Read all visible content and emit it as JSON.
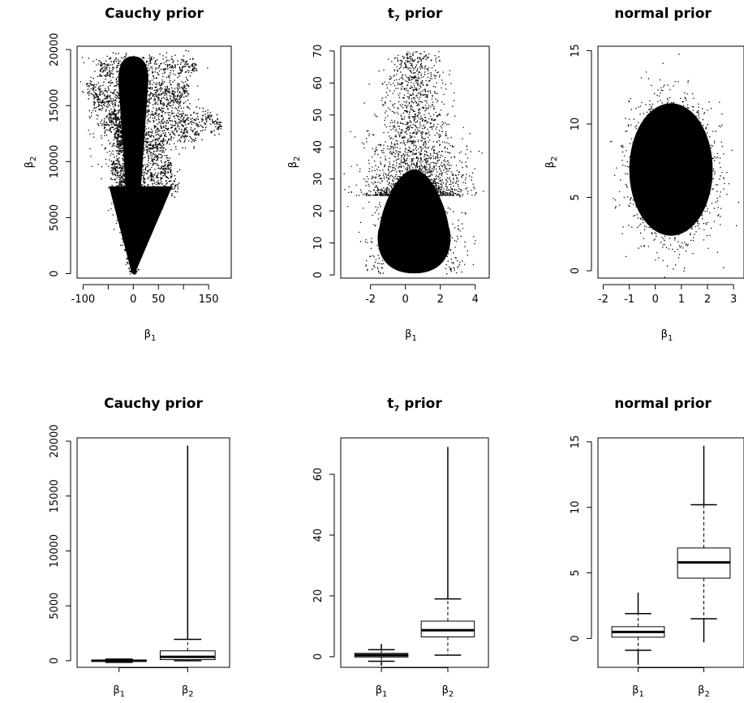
{
  "chart_data": [
    {
      "type": "scatter",
      "title": "Cauchy prior",
      "title_sub": "",
      "xlabel": "β",
      "xlabel_sub": "1",
      "ylabel": "β",
      "ylabel_sub": "2",
      "xlim": [
        -112,
        195
      ],
      "ylim": [
        -400,
        20300
      ],
      "xticks": [
        {
          "value": -100,
          "label": "-100"
        },
        {
          "value": -50,
          "label": ""
        },
        {
          "value": 0,
          "label": "0"
        },
        {
          "value": 50,
          "label": "50"
        },
        {
          "value": 100,
          "label": ""
        },
        {
          "value": 150,
          "label": "150"
        }
      ],
      "yticks": [
        {
          "value": 0,
          "label": "0"
        },
        {
          "value": 5000,
          "label": "5000"
        },
        {
          "value": 10000,
          "label": "10000"
        },
        {
          "value": 15000,
          "label": "15000"
        },
        {
          "value": 20000,
          "label": "20000"
        }
      ],
      "cloud": {
        "shape": "cone",
        "center_x": 0,
        "y_min": 0,
        "y_max": 19400,
        "base_halfwidth": 3,
        "top_halfwidth": 30,
        "fringe_levels_y": [
          6500,
          8000,
          9500,
          11500,
          12600,
          13400,
          14000,
          15500,
          16400,
          18400
        ],
        "fringe_right_x": [
          60,
          90,
          75,
          60,
          130,
          175,
          155,
          95,
          110,
          125
        ],
        "fringe_left_x": [
          -25,
          -30,
          -45,
          -35,
          -40,
          -60,
          -50,
          -80,
          -95,
          -70
        ]
      },
      "color": "#000000"
    },
    {
      "type": "scatter",
      "title": "t",
      "title_sub": "7",
      "title_suffix": " prior",
      "xlabel": "β",
      "xlabel_sub": "1",
      "ylabel": "β",
      "ylabel_sub": "2",
      "xlim": [
        -3.7,
        4.8
      ],
      "ylim": [
        -1,
        71.5
      ],
      "xticks": [
        {
          "value": -2,
          "label": "-2"
        },
        {
          "value": 0,
          "label": "0"
        },
        {
          "value": 2,
          "label": "2"
        },
        {
          "value": 4,
          "label": "4"
        }
      ],
      "yticks": [
        {
          "value": 0,
          "label": "0"
        },
        {
          "value": 10,
          "label": "10"
        },
        {
          "value": 20,
          "label": "20"
        },
        {
          "value": 30,
          "label": "30"
        },
        {
          "value": 40,
          "label": "40"
        },
        {
          "value": 50,
          "label": "50"
        },
        {
          "value": 60,
          "label": "60"
        },
        {
          "value": 70,
          "label": "70"
        }
      ],
      "cloud": {
        "shape": "egg",
        "center_x": 0.5,
        "center_y": 15,
        "sd_x": 1.1,
        "y_min": 0.5,
        "dense_top": 33,
        "sparse_top": 70
      },
      "color": "#000000"
    },
    {
      "type": "scatter",
      "title": "normal prior",
      "title_sub": "",
      "xlabel": "β",
      "xlabel_sub": "1",
      "ylabel": "β",
      "ylabel_sub": "2",
      "xlim": [
        -2.2,
        3.4
      ],
      "ylim": [
        -0.5,
        15.3
      ],
      "xticks": [
        {
          "value": -2,
          "label": "-2"
        },
        {
          "value": -1,
          "label": "-1"
        },
        {
          "value": 0,
          "label": "0"
        },
        {
          "value": 1,
          "label": "1"
        },
        {
          "value": 2,
          "label": "2"
        },
        {
          "value": 3,
          "label": "3"
        }
      ],
      "yticks": [
        {
          "value": 0,
          "label": "0"
        },
        {
          "value": 5,
          "label": "5"
        },
        {
          "value": 10,
          "label": "10"
        },
        {
          "value": 15,
          "label": "15"
        }
      ],
      "cloud": {
        "shape": "ellipse",
        "center_x": 0.6,
        "center_y": 6.9,
        "sd_x": 0.78,
        "sd_y": 2.2
      },
      "color": "#000000"
    },
    {
      "type": "box",
      "title": "Cauchy prior",
      "title_sub": "",
      "categories": [
        {
          "label": "β",
          "sub": "1"
        },
        {
          "label": "β",
          "sub": "2"
        }
      ],
      "ylim": [
        -600,
        20300
      ],
      "yticks": [
        {
          "value": 0,
          "label": "0"
        },
        {
          "value": 5000,
          "label": "5000"
        },
        {
          "value": 10000,
          "label": "10000"
        },
        {
          "value": 15000,
          "label": "15000"
        },
        {
          "value": 20000,
          "label": "20000"
        }
      ],
      "boxes": [
        {
          "min": -150,
          "q1": -40,
          "median": 0,
          "q3": 40,
          "max": 150,
          "flier_cap": null
        },
        {
          "min": 0,
          "q1": 100,
          "median": 350,
          "q3": 900,
          "max": 1950,
          "flier_cap": 1950,
          "flier_top": 19600
        }
      ]
    },
    {
      "type": "box",
      "title": "t",
      "title_sub": "7",
      "title_suffix": " prior",
      "categories": [
        {
          "label": "β",
          "sub": "1"
        },
        {
          "label": "β",
          "sub": "2"
        }
      ],
      "ylim": [
        -3.5,
        72
      ],
      "yticks": [
        {
          "value": 0,
          "label": "0"
        },
        {
          "value": 20,
          "label": "20"
        },
        {
          "value": 40,
          "label": "40"
        },
        {
          "value": 60,
          "label": "60"
        }
      ],
      "boxes": [
        {
          "min": -1.5,
          "q1": -0.1,
          "median": 0.5,
          "q3": 1.1,
          "max": 2.3,
          "flier_cap": 2.3,
          "flier_top": 4.2,
          "flier_bottom": -3
        },
        {
          "min": 0.5,
          "q1": 6.5,
          "median": 8.7,
          "q3": 11.7,
          "max": 19,
          "flier_cap": 19,
          "flier_top": 69
        }
      ]
    },
    {
      "type": "box",
      "title": "normal prior",
      "title_sub": "",
      "categories": [
        {
          "label": "β",
          "sub": "1"
        },
        {
          "label": "β",
          "sub": "2"
        }
      ],
      "ylim": [
        -2.2,
        15.3
      ],
      "yticks": [
        {
          "value": 0,
          "label": "0"
        },
        {
          "value": 5,
          "label": "5"
        },
        {
          "value": 10,
          "label": "10"
        },
        {
          "value": 15,
          "label": "15"
        }
      ],
      "boxes": [
        {
          "min": -0.9,
          "q1": 0.1,
          "median": 0.5,
          "q3": 0.9,
          "max": 1.9,
          "flier_cap": 1.9,
          "flier_top": 3.5,
          "flier_bottom": -2,
          "low_cap": -0.9
        },
        {
          "min": 1.5,
          "q1": 4.6,
          "median": 5.8,
          "q3": 6.9,
          "max": 10.2,
          "flier_cap": 10.2,
          "flier_top": 14.7,
          "flier_bottom": -0.3,
          "low_cap": 1.5
        }
      ]
    }
  ]
}
